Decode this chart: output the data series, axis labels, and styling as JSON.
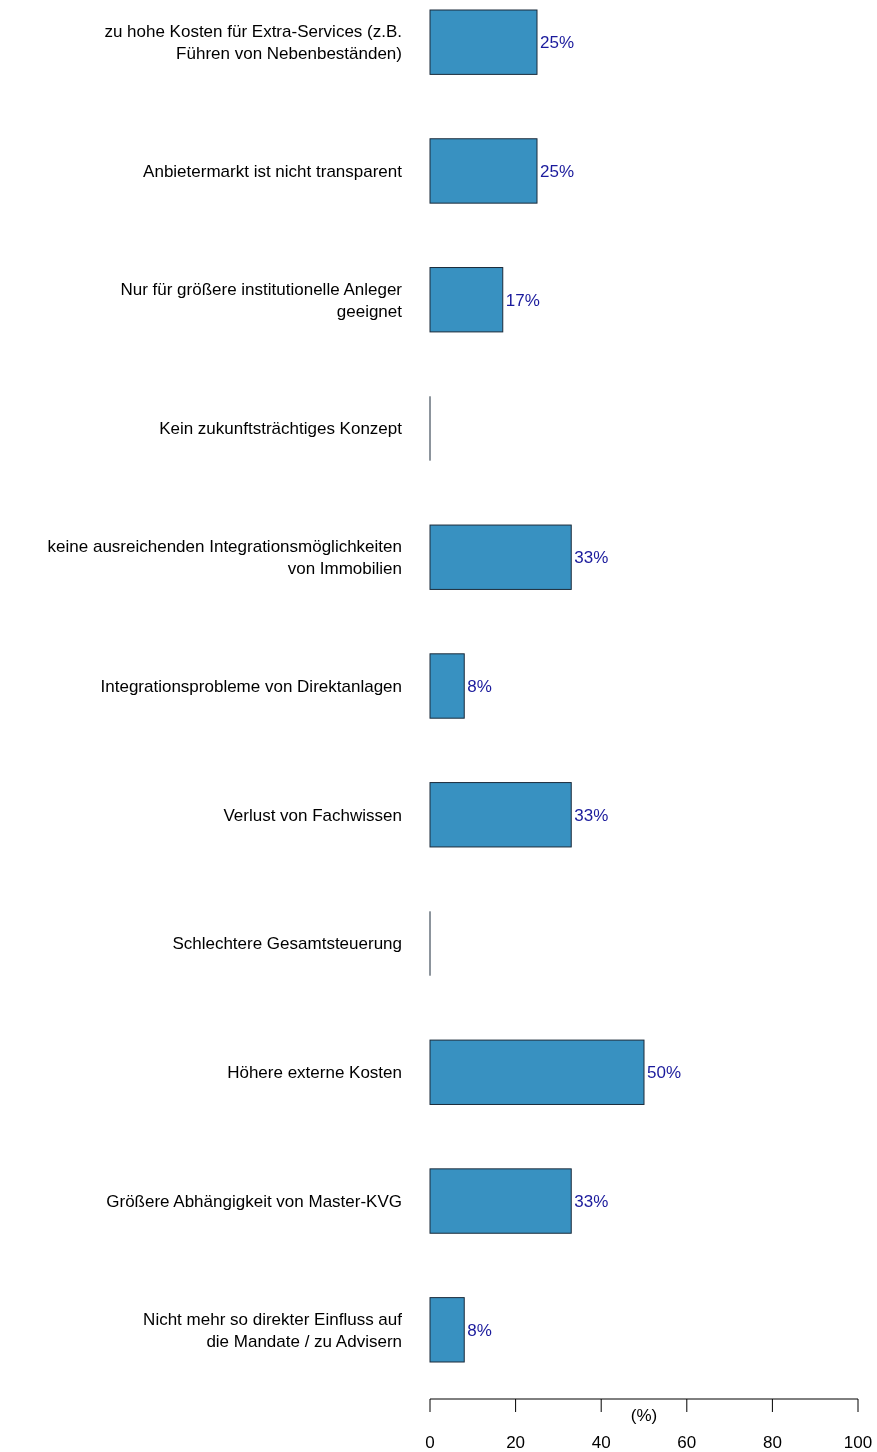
{
  "chart_data": {
    "type": "bar",
    "orientation": "horizontal",
    "xlabel": "(%)",
    "categories": [
      "zu hohe Kosten für Extra-Services (z.B.\nFühren von Nebenbeständen)",
      "Anbietermarkt ist nicht transparent",
      "Nur für größere institutionelle Anleger\ngeeignet",
      "Kein zukunftsträchtiges Konzept",
      "keine ausreichenden Integrationsmöglichkeiten\nvon Immobilien",
      "Integrationsprobleme von Direktanlagen",
      "Verlust von Fachwissen",
      "Schlechtere Gesamtsteuerung",
      "Höhere externe Kosten",
      "Größere Abhängigkeit von Master-KVG",
      "Nicht mehr so direkter Einfluss auf\ndie Mandate / zu Advisern"
    ],
    "values": [
      25,
      25,
      17,
      0,
      33,
      8,
      33,
      0,
      50,
      33,
      8
    ],
    "value_labels": [
      "25%",
      "25%",
      "17%",
      null,
      "33%",
      "8%",
      "33%",
      null,
      "50%",
      "33%",
      "8%"
    ],
    "color": "#3891c1",
    "xlim": [
      0,
      100
    ],
    "xticks": [
      0,
      20,
      40,
      60,
      80,
      100
    ]
  }
}
